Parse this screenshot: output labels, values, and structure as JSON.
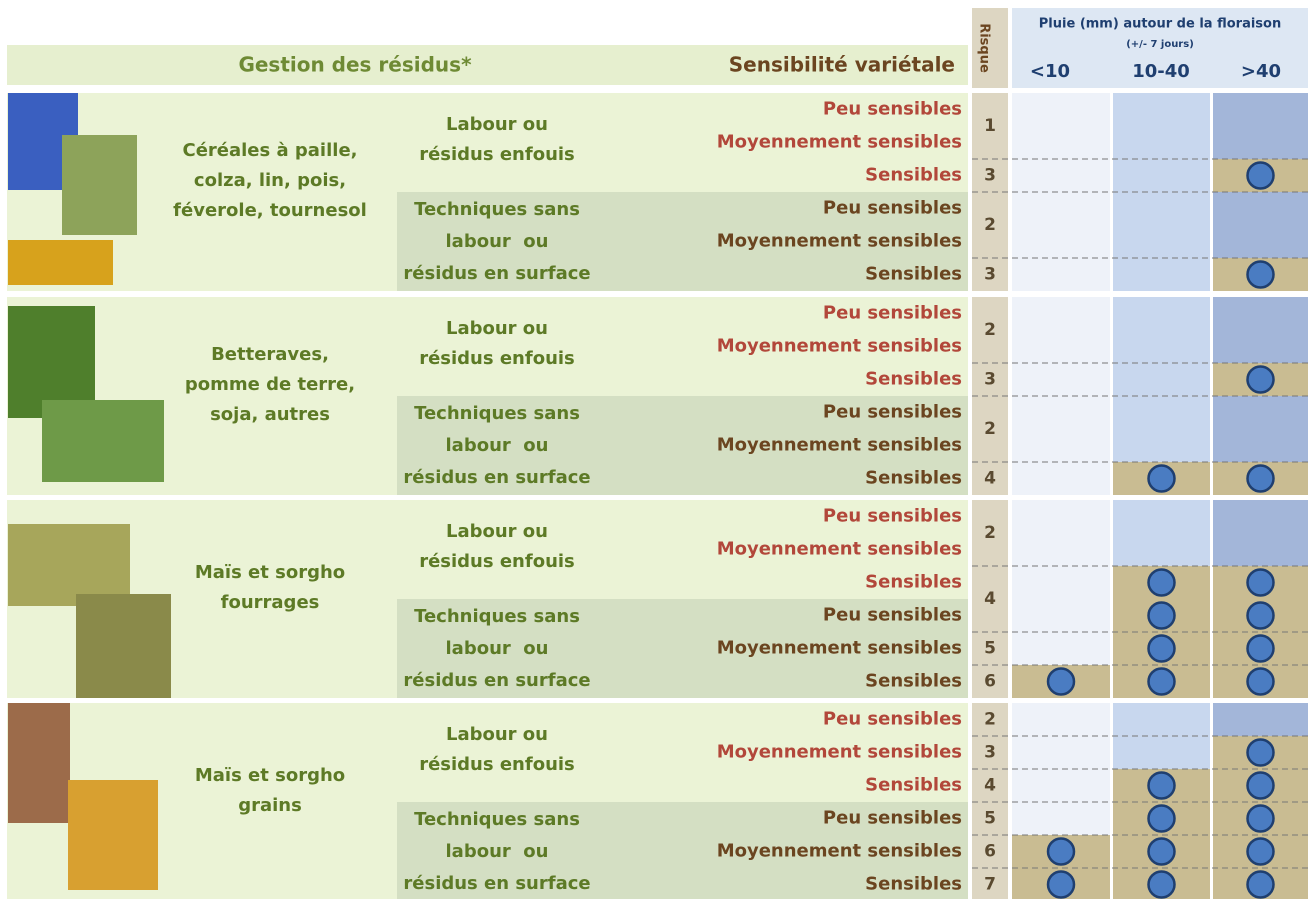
{
  "header": {
    "residus": "Gestion des résidus*",
    "sensibilite": "Sensibilité variétale",
    "risque": "Risque",
    "pluie": "Pluie (mm) autour de la floraison",
    "pluie_note": "(+/- 7 jours)",
    "rain_classes": [
      "<10",
      "10-40",
      ">40"
    ]
  },
  "groups": [
    {
      "crop": [
        "Céréales à paille,",
        "colza, lin, pois,",
        "féverole, tournesol"
      ],
      "practices": [
        {
          "label": [
            "Labour ou",
            "résidus enfouis"
          ],
          "rows": [
            {
              "sensibilite": "Peu sensibles",
              "risque": 1,
              "dots": [
                false,
                false,
                false
              ]
            },
            {
              "sensibilite": "Moyennement sensibles",
              "risque": null,
              "dots": [
                false,
                false,
                false
              ]
            },
            {
              "sensibilite": "Sensibles",
              "risque": 3,
              "dots": [
                false,
                false,
                true
              ]
            }
          ]
        },
        {
          "label": [
            "Techniques sans",
            "labour  ou",
            "résidus en surface"
          ],
          "rows": [
            {
              "sensibilite": "Peu sensibles",
              "risque": 2,
              "dots": [
                false,
                false,
                false
              ]
            },
            {
              "sensibilite": "Moyennement sensibles",
              "risque": null,
              "dots": [
                false,
                false,
                false
              ]
            },
            {
              "sensibilite": "Sensibles",
              "risque": 3,
              "dots": [
                false,
                false,
                true
              ]
            }
          ]
        }
      ]
    },
    {
      "crop": [
        "Betteraves,",
        "pomme de terre,",
        "soja, autres"
      ],
      "practices": [
        {
          "label": [
            "Labour ou",
            "résidus enfouis"
          ],
          "rows": [
            {
              "sensibilite": "Peu sensibles",
              "risque": 2,
              "dots": [
                false,
                false,
                false
              ]
            },
            {
              "sensibilite": "Moyennement sensibles",
              "risque": null,
              "dots": [
                false,
                false,
                false
              ]
            },
            {
              "sensibilite": "Sensibles",
              "risque": 3,
              "dots": [
                false,
                false,
                true
              ]
            }
          ]
        },
        {
          "label": [
            "Techniques sans",
            "labour  ou",
            "résidus en surface"
          ],
          "rows": [
            {
              "sensibilite": "Peu sensibles",
              "risque": 2,
              "dots": [
                false,
                false,
                false
              ]
            },
            {
              "sensibilite": "Moyennement sensibles",
              "risque": null,
              "dots": [
                false,
                false,
                false
              ]
            },
            {
              "sensibilite": "Sensibles",
              "risque": 4,
              "dots": [
                false,
                true,
                true
              ]
            }
          ]
        }
      ]
    },
    {
      "crop": [
        "Maïs et sorgho",
        "fourrages"
      ],
      "practices": [
        {
          "label": [
            "Labour ou",
            "résidus enfouis"
          ],
          "rows": [
            {
              "sensibilite": "Peu sensibles",
              "risque": 2,
              "dots": [
                false,
                false,
                false
              ]
            },
            {
              "sensibilite": "Moyennement sensibles",
              "risque": null,
              "dots": [
                false,
                false,
                false
              ]
            },
            {
              "sensibilite": "Sensibles",
              "risque": 4,
              "dots": [
                false,
                true,
                true
              ]
            }
          ]
        },
        {
          "label": [
            "Techniques sans",
            "labour  ou",
            "résidus en surface"
          ],
          "rows": [
            {
              "sensibilite": "Peu sensibles",
              "risque": null,
              "dots": [
                false,
                true,
                true
              ]
            },
            {
              "sensibilite": "Moyennement sensibles",
              "risque": 5,
              "dots": [
                false,
                true,
                true
              ]
            },
            {
              "sensibilite": "Sensibles",
              "risque": 6,
              "dots": [
                true,
                true,
                true
              ]
            }
          ]
        }
      ]
    },
    {
      "crop": [
        "Maïs et sorgho",
        "grains"
      ],
      "practices": [
        {
          "label": [
            "Labour ou",
            "résidus enfouis"
          ],
          "rows": [
            {
              "sensibilite": "Peu sensibles",
              "risque": 2,
              "dots": [
                false,
                false,
                false
              ]
            },
            {
              "sensibilite": "Moyennement sensibles",
              "risque": 3,
              "dots": [
                false,
                false,
                true
              ]
            },
            {
              "sensibilite": "Sensibles",
              "risque": 4,
              "dots": [
                false,
                true,
                true
              ]
            }
          ]
        },
        {
          "label": [
            "Techniques sans",
            "labour  ou",
            "résidus en surface"
          ],
          "rows": [
            {
              "sensibilite": "Peu sensibles",
              "risque": 5,
              "dots": [
                false,
                true,
                true
              ]
            },
            {
              "sensibilite": "Moyennement sensibles",
              "risque": 6,
              "dots": [
                true,
                true,
                true
              ]
            },
            {
              "sensibilite": "Sensibles",
              "risque": 7,
              "dots": [
                true,
                true,
                true
              ]
            }
          ]
        }
      ]
    }
  ]
}
